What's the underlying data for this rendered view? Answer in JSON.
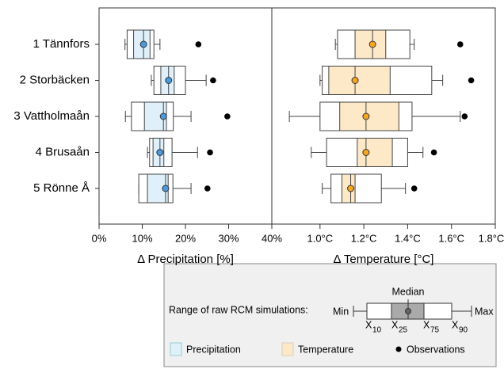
{
  "chart_data": [
    {
      "type": "boxplot",
      "xlabel": "Δ Precipitation [%]",
      "categories": [
        "1 Tännfors",
        "2 Storbäcken",
        "3 Vattholmaån",
        "4 Brusaån",
        "5 Rönne Å"
      ],
      "min": [
        6.0,
        12.1,
        6.1,
        11.2,
        9.2
      ],
      "x10": [
        6.5,
        12.7,
        7.5,
        11.7,
        9.2
      ],
      "x25": [
        8.0,
        14.3,
        10.5,
        12.5,
        11.2
      ],
      "median": [
        10.3,
        16.1,
        14.9,
        14.1,
        15.4
      ],
      "x75": [
        11.8,
        17.4,
        15.6,
        15.0,
        16.0
      ],
      "x90": [
        12.7,
        20.0,
        17.2,
        16.9,
        17.1
      ],
      "max": [
        14.1,
        24.8,
        21.3,
        22.8,
        21.3
      ],
      "observations": [
        23.0,
        26.4,
        29.7,
        25.7,
        25.1
      ],
      "fill": "#dff0fb",
      "marker_color": "#4a98de",
      "xlim": [
        0,
        40
      ],
      "xticks": [
        {
          "value": 0,
          "label": "0%"
        },
        {
          "value": 10,
          "label": "10%"
        },
        {
          "value": 20,
          "label": "20%"
        },
        {
          "value": 30,
          "label": "30%"
        },
        {
          "value": 40,
          "label": "40%"
        }
      ]
    },
    {
      "type": "boxplot",
      "xlabel": "Δ Temperature [°C]",
      "min": [
        1.07,
        1.0,
        0.86,
        0.96,
        1.01
      ],
      "x10": [
        1.08,
        1.01,
        1.0,
        1.03,
        1.05
      ],
      "x25": [
        1.16,
        1.04,
        1.09,
        1.17,
        1.1
      ],
      "median": [
        1.24,
        1.16,
        1.21,
        1.21,
        1.14
      ],
      "x75": [
        1.3,
        1.32,
        1.36,
        1.33,
        1.16
      ],
      "x90": [
        1.41,
        1.51,
        1.42,
        1.4,
        1.28
      ],
      "max": [
        1.43,
        1.56,
        1.64,
        1.47,
        1.39
      ],
      "observations": [
        1.64,
        1.69,
        1.66,
        1.52,
        1.43
      ],
      "fill": "#fde9c8",
      "marker_color": "#f5a623",
      "xlim": [
        0.78,
        1.8
      ],
      "xticks": [
        {
          "value": 1.0,
          "label": "1.0°C"
        },
        {
          "value": 1.2,
          "label": "1.2°C"
        },
        {
          "value": 1.4,
          "label": "1.4°C"
        },
        {
          "value": 1.6,
          "label": "1.6°C"
        },
        {
          "value": 1.8,
          "label": "1.8°C"
        }
      ]
    }
  ],
  "legend": {
    "range_label": "Range of raw RCM simulations:",
    "min": "Min",
    "max": "Max",
    "median": "Median",
    "x_labels": [
      {
        "base": "X",
        "sub": "10"
      },
      {
        "base": "X",
        "sub": "25"
      },
      {
        "base": "X",
        "sub": "75"
      },
      {
        "base": "X",
        "sub": "90"
      }
    ],
    "precipitation": "Precipitation",
    "temperature": "Temperature",
    "observations": "Observations"
  }
}
